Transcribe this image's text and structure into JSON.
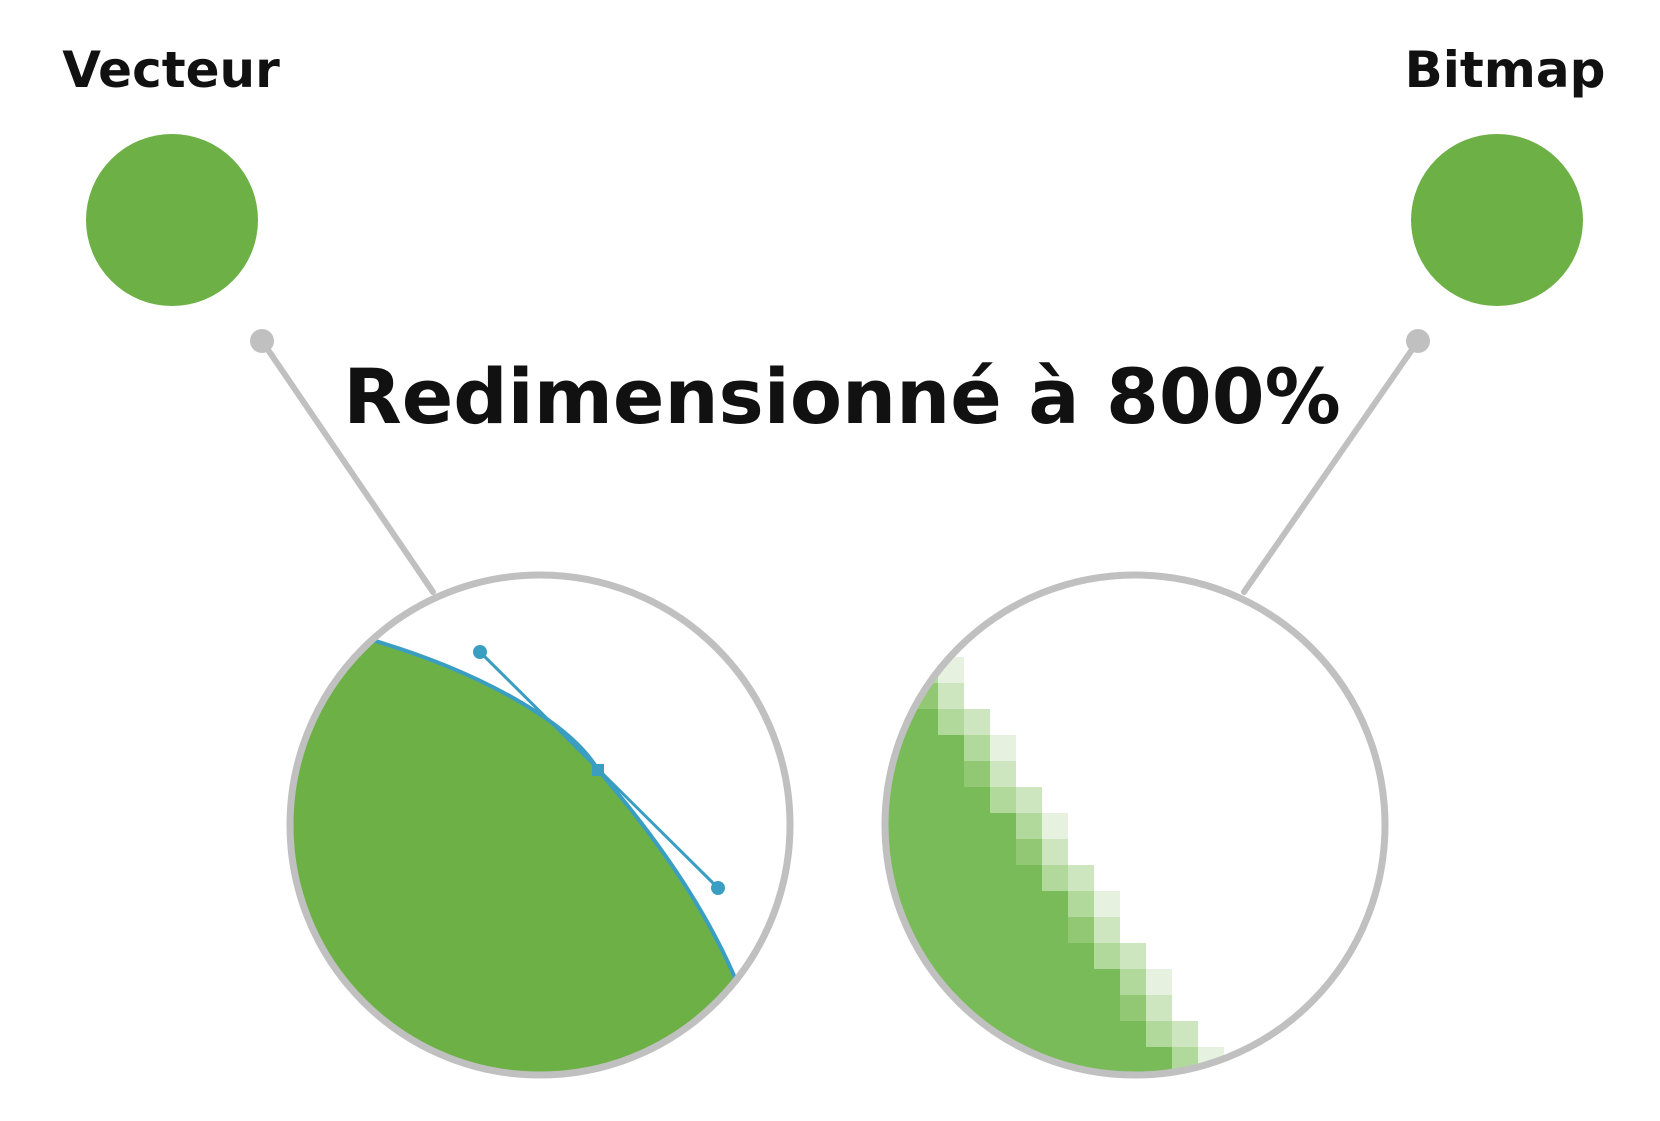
{
  "labels": {
    "vector": "Vecteur",
    "bitmap": "Bitmap",
    "title": "Redimensionné à 800%"
  },
  "colors": {
    "shape_green": "#6db046",
    "pixel_green": "#79bb59",
    "bezier_blue": "#3a9ec2",
    "leader_gray": "#c0c0c0",
    "text": "#111111",
    "background": "#ffffff",
    "edge_pixel_shades": [
      "#92c874",
      "#b1d99b",
      "#cde6bf",
      "#e6f2df",
      "#f4faf1"
    ]
  },
  "icons": {
    "vector_node": "bezier-anchor-with-handles",
    "bitmap_edge": "pixelated-staircase-edge"
  }
}
